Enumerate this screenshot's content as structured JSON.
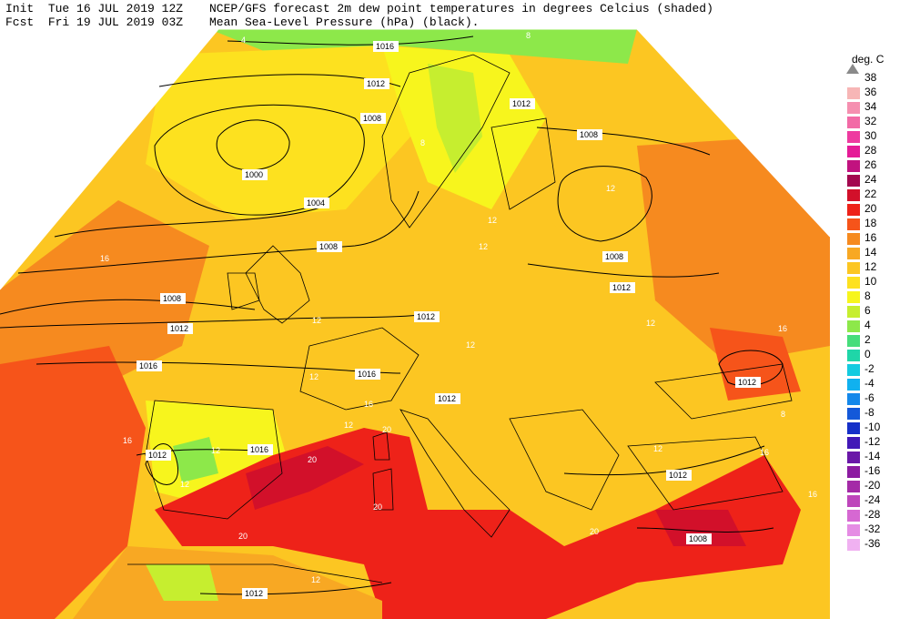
{
  "header": {
    "init_label": "Init",
    "init_value": "Tue 16 JUL 2019 12Z",
    "fcst_label": "Fcst",
    "fcst_value": "Fri 19 JUL 2019 03Z",
    "title_line1": "NCEP/GFS forecast 2m dew point temperatures in degrees Celcius (shaded)",
    "title_line2": "Mean Sea-Level Pressure (hPa) (black)."
  },
  "legend": {
    "unit": "deg. C",
    "items": [
      {
        "label": "38",
        "color": "#a0a0a0"
      },
      {
        "label": "36",
        "color": "#f7b6b6"
      },
      {
        "label": "34",
        "color": "#f58fb0"
      },
      {
        "label": "32",
        "color": "#f26aa6"
      },
      {
        "label": "30",
        "color": "#ee3aa0"
      },
      {
        "label": "28",
        "color": "#e51b97"
      },
      {
        "label": "26",
        "color": "#c1127f"
      },
      {
        "label": "24",
        "color": "#a3084f"
      },
      {
        "label": "22",
        "color": "#d2102a"
      },
      {
        "label": "20",
        "color": "#ee2219"
      },
      {
        "label": "18",
        "color": "#f6541a"
      },
      {
        "label": "16",
        "color": "#f68a1f"
      },
      {
        "label": "14",
        "color": "#f8a823"
      },
      {
        "label": "12",
        "color": "#fcc622"
      },
      {
        "label": "10",
        "color": "#fde11f"
      },
      {
        "label": "8",
        "color": "#f7f51d"
      },
      {
        "label": "6",
        "color": "#c6ee2f"
      },
      {
        "label": "4",
        "color": "#8de84a"
      },
      {
        "label": "2",
        "color": "#46dd7b"
      },
      {
        "label": "0",
        "color": "#1fd6a8"
      },
      {
        "label": "-2",
        "color": "#14cbe0"
      },
      {
        "label": "-4",
        "color": "#10b1ef"
      },
      {
        "label": "-6",
        "color": "#1488ea"
      },
      {
        "label": "-8",
        "color": "#1459d9"
      },
      {
        "label": "-10",
        "color": "#1630c8"
      },
      {
        "label": "-12",
        "color": "#4218b7"
      },
      {
        "label": "-14",
        "color": "#6a17a8"
      },
      {
        "label": "-16",
        "color": "#8c1ba1"
      },
      {
        "label": "-20",
        "color": "#a42aa7"
      },
      {
        "label": "-24",
        "color": "#be45bb"
      },
      {
        "label": "-28",
        "color": "#d668d2"
      },
      {
        "label": "-32",
        "color": "#e58ce4"
      },
      {
        "label": "-36",
        "color": "#f0b1f1"
      }
    ]
  },
  "map": {
    "isobar_labels": [
      "1016",
      "1012",
      "1008",
      "1000",
      "1004",
      "1008",
      "1008",
      "1012",
      "1016",
      "1012",
      "1016",
      "1012",
      "1016",
      "1012",
      "1012",
      "1008",
      "1008",
      "1012",
      "1012",
      "1012",
      "1008",
      "1012"
    ],
    "dewpoint_labels": [
      "4",
      "8",
      "8",
      "16",
      "12",
      "12",
      "12",
      "12",
      "12",
      "16",
      "12",
      "20",
      "20",
      "20",
      "20",
      "16",
      "12",
      "12",
      "12",
      "12",
      "16",
      "20",
      "16",
      "12",
      "8",
      "16",
      "12"
    ]
  }
}
